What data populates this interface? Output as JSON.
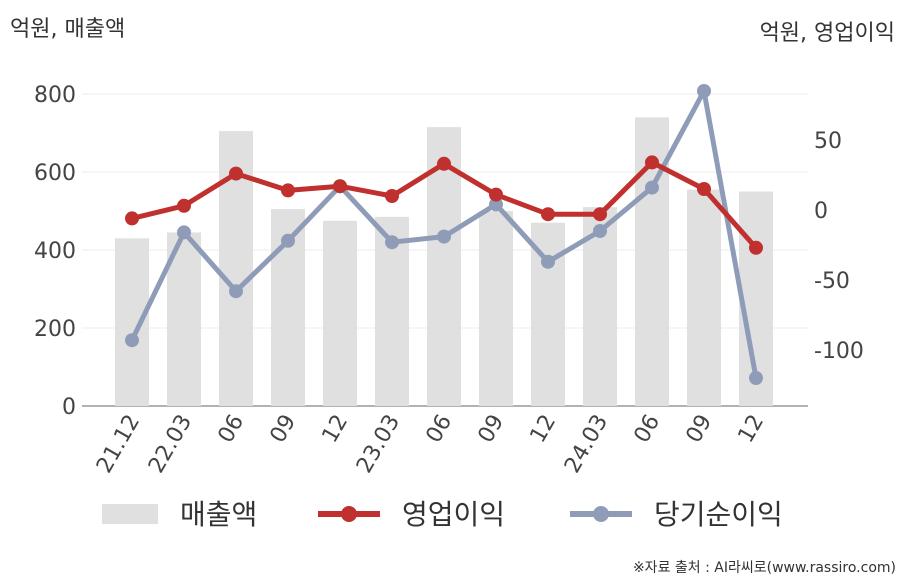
{
  "chart_data": {
    "type": "bar+line",
    "left_axis_unit": "억원, 매출액",
    "right_axis_unit": "억원, 영업이익",
    "categories": [
      "21.12",
      "22.03",
      "06",
      "09",
      "12",
      "23.03",
      "06",
      "09",
      "12",
      "24.03",
      "06",
      "09",
      "12"
    ],
    "left_ylim": [
      0,
      800
    ],
    "left_ticks": [
      0,
      200,
      400,
      600,
      800
    ],
    "right_ylim": [
      -140,
      90
    ],
    "right_ticks": [
      -100,
      -50,
      0,
      50
    ],
    "series": [
      {
        "name": "매출액",
        "kind": "bar",
        "axis": "left",
        "color": "#e0e0e0",
        "values": [
          430,
          445,
          705,
          505,
          475,
          485,
          715,
          500,
          470,
          510,
          740,
          555,
          550
        ]
      },
      {
        "name": "영업이익",
        "kind": "line",
        "axis": "right",
        "color": "#c0302e",
        "values": [
          -6,
          3,
          26,
          14,
          17,
          10,
          33,
          11,
          -3,
          -3,
          34,
          15,
          -27
        ]
      },
      {
        "name": "당기순이익",
        "kind": "line",
        "axis": "right",
        "color": "#8f9cb8",
        "values": [
          -93,
          -16,
          -58,
          -22,
          17,
          -23,
          -19,
          4,
          -37,
          -15,
          16,
          85,
          -120
        ]
      }
    ],
    "grid": true,
    "legend": "bottom"
  },
  "source": "※자료 출처 : AI라씨로(www.rassiro.com)"
}
